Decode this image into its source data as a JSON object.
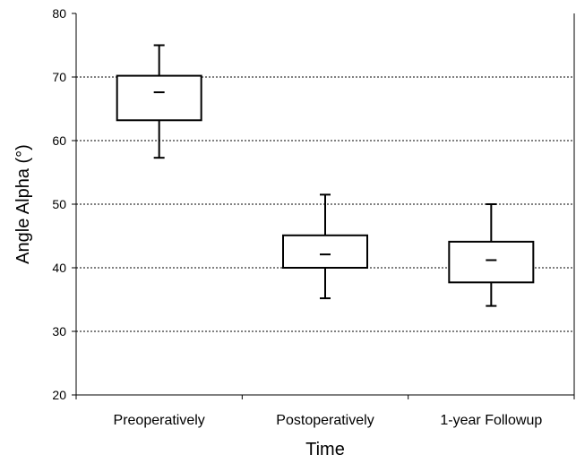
{
  "chart_data": {
    "type": "box",
    "title": "",
    "xlabel": "Time",
    "ylabel": "Angle Alpha (°)",
    "ylim": [
      20,
      80
    ],
    "yticks": [
      20,
      30,
      40,
      50,
      60,
      70,
      80
    ],
    "grid": "horizontal-dotted",
    "categories": [
      "Preoperatively",
      "Postoperatively",
      "1-year Followup"
    ],
    "boxes": [
      {
        "min": 57.3,
        "q1": 63.2,
        "median": 67.6,
        "q3": 70.2,
        "max": 75.0
      },
      {
        "min": 35.2,
        "q1": 40.0,
        "median": 42.1,
        "q3": 45.1,
        "max": 51.5
      },
      {
        "min": 34.0,
        "q1": 37.7,
        "median": 41.2,
        "q3": 44.1,
        "max": 50.0
      }
    ]
  }
}
